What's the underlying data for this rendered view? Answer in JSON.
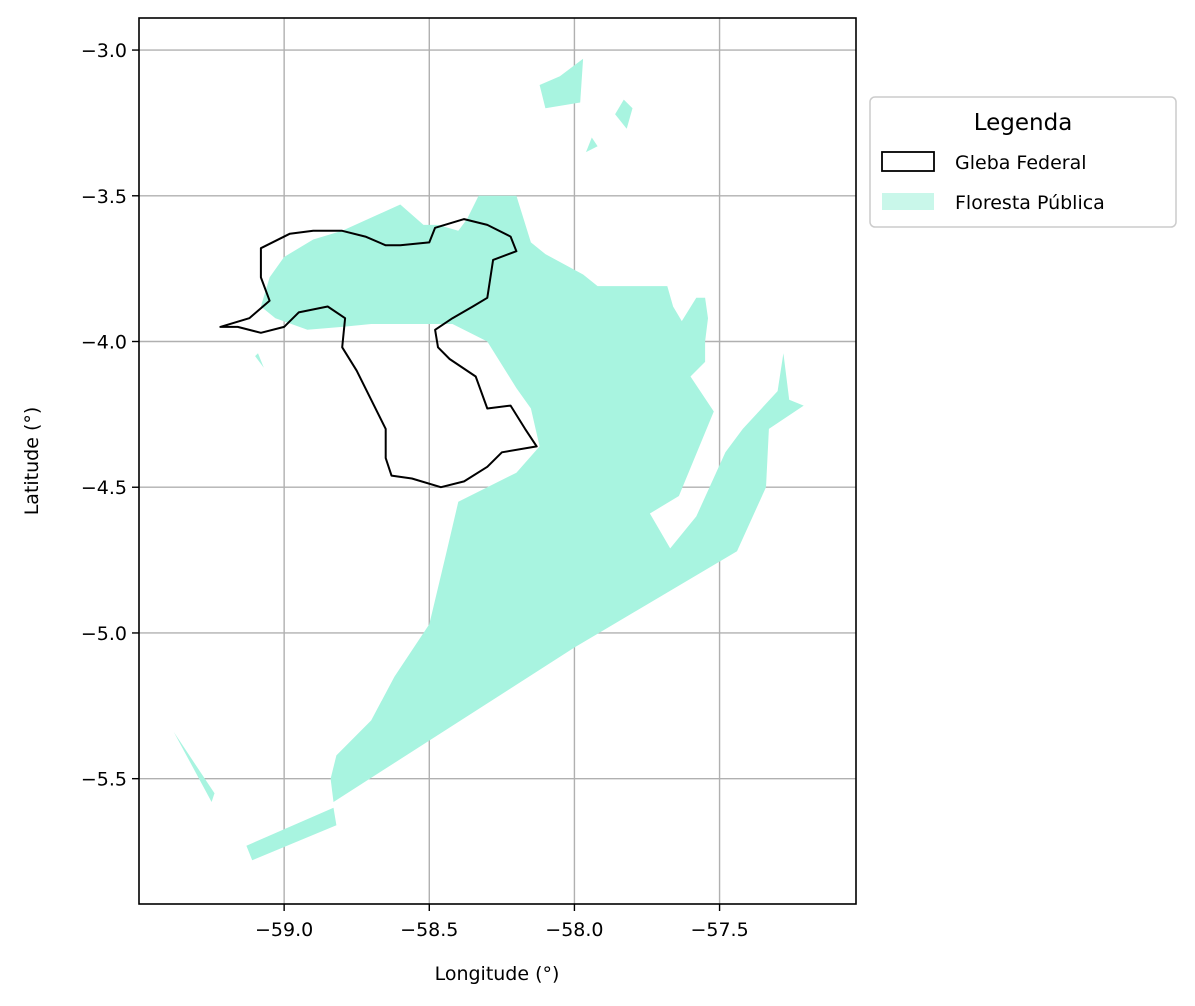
{
  "axes": {
    "xlabel": "Longitude (°)",
    "ylabel": "Latitude (°)",
    "xlim": [
      -59.5,
      -57.03
    ],
    "ylim": [
      -5.93,
      -2.89
    ],
    "xticks": [
      {
        "value": -59.0,
        "label": "−59.0"
      },
      {
        "value": -58.5,
        "label": "−58.5"
      },
      {
        "value": -58.0,
        "label": "−58.0"
      },
      {
        "value": -57.5,
        "label": "−57.5"
      }
    ],
    "yticks": [
      {
        "value": -3.0,
        "label": "−3.0"
      },
      {
        "value": -3.5,
        "label": "−3.5"
      },
      {
        "value": -4.0,
        "label": "−4.0"
      },
      {
        "value": -4.5,
        "label": "−4.5"
      },
      {
        "value": -5.0,
        "label": "−5.0"
      },
      {
        "value": -5.5,
        "label": "−5.5"
      }
    ],
    "grid": true
  },
  "legend": {
    "title": "Legenda",
    "placement": "outside right, top",
    "items": [
      {
        "key": "gleba",
        "label": "Gleba Federal"
      },
      {
        "key": "floresta",
        "label": "Floresta Pública"
      }
    ]
  },
  "colors": {
    "floresta_fill": "#a8f4e0",
    "gleba_stroke": "#000000",
    "grid": "#b0b0b0"
  },
  "layers": {
    "floresta_publica": [
      [
        [
          -58.6,
          -3.53
        ],
        [
          -58.52,
          -3.6
        ],
        [
          -58.47,
          -3.6
        ],
        [
          -58.4,
          -3.62
        ],
        [
          -58.37,
          -3.58
        ],
        [
          -58.33,
          -3.5
        ],
        [
          -58.2,
          -3.5
        ],
        [
          -58.15,
          -3.66
        ],
        [
          -58.1,
          -3.7
        ],
        [
          -57.97,
          -3.77
        ],
        [
          -57.92,
          -3.81
        ],
        [
          -57.82,
          -3.81
        ],
        [
          -57.68,
          -3.81
        ],
        [
          -57.66,
          -3.88
        ],
        [
          -57.63,
          -3.93
        ],
        [
          -57.58,
          -3.85
        ],
        [
          -57.55,
          -3.85
        ],
        [
          -57.54,
          -3.92
        ],
        [
          -57.55,
          -4.0
        ],
        [
          -57.55,
          -4.07
        ],
        [
          -57.6,
          -4.12
        ],
        [
          -57.52,
          -4.24
        ],
        [
          -57.64,
          -4.53
        ],
        [
          -57.74,
          -4.59
        ],
        [
          -57.67,
          -4.71
        ],
        [
          -57.58,
          -4.6
        ],
        [
          -57.48,
          -4.38
        ],
        [
          -57.42,
          -4.3
        ],
        [
          -57.3,
          -4.17
        ],
        [
          -57.28,
          -4.04
        ],
        [
          -57.26,
          -4.2
        ],
        [
          -57.21,
          -4.22
        ],
        [
          -57.33,
          -4.3
        ],
        [
          -57.34,
          -4.5
        ],
        [
          -57.44,
          -4.72
        ],
        [
          -58.0,
          -5.05
        ],
        [
          -58.83,
          -5.58
        ],
        [
          -58.84,
          -5.5
        ],
        [
          -58.82,
          -5.42
        ],
        [
          -58.7,
          -5.3
        ],
        [
          -58.62,
          -5.15
        ],
        [
          -58.5,
          -4.97
        ],
        [
          -58.44,
          -4.72
        ],
        [
          -58.4,
          -4.55
        ],
        [
          -58.3,
          -4.5
        ],
        [
          -58.2,
          -4.45
        ],
        [
          -58.12,
          -4.36
        ],
        [
          -58.15,
          -4.23
        ],
        [
          -58.2,
          -4.16
        ],
        [
          -58.3,
          -4.0
        ],
        [
          -58.42,
          -3.94
        ],
        [
          -58.55,
          -3.94
        ],
        [
          -58.7,
          -3.94
        ],
        [
          -58.8,
          -3.95
        ],
        [
          -58.92,
          -3.96
        ],
        [
          -59.03,
          -3.92
        ],
        [
          -59.08,
          -3.88
        ],
        [
          -59.05,
          -3.78
        ],
        [
          -59.0,
          -3.71
        ],
        [
          -58.9,
          -3.65
        ],
        [
          -58.8,
          -3.62
        ]
      ],
      [
        [
          -58.83,
          -5.6
        ],
        [
          -59.13,
          -5.73
        ],
        [
          -59.11,
          -5.78
        ],
        [
          -58.82,
          -5.66
        ]
      ],
      [
        [
          -59.38,
          -5.34
        ],
        [
          -59.25,
          -5.58
        ],
        [
          -59.24,
          -5.55
        ]
      ],
      [
        [
          -59.1,
          -4.05
        ],
        [
          -59.07,
          -4.09
        ],
        [
          -59.09,
          -4.04
        ]
      ],
      [
        [
          -58.05,
          -3.09
        ],
        [
          -57.97,
          -3.03
        ],
        [
          -57.98,
          -3.18
        ],
        [
          -58.1,
          -3.2
        ],
        [
          -58.12,
          -3.12
        ]
      ],
      [
        [
          -57.83,
          -3.17
        ],
        [
          -57.8,
          -3.2
        ],
        [
          -57.82,
          -3.27
        ],
        [
          -57.86,
          -3.22
        ]
      ],
      [
        [
          -57.94,
          -3.3
        ],
        [
          -57.96,
          -3.35
        ],
        [
          -57.92,
          -3.33
        ]
      ]
    ],
    "gleba_federal": [
      [
        [
          -59.22,
          -3.95
        ],
        [
          -59.12,
          -3.92
        ],
        [
          -59.05,
          -3.86
        ],
        [
          -59.08,
          -3.78
        ],
        [
          -59.08,
          -3.68
        ],
        [
          -58.98,
          -3.63
        ],
        [
          -58.9,
          -3.62
        ],
        [
          -58.8,
          -3.62
        ],
        [
          -58.72,
          -3.64
        ],
        [
          -58.65,
          -3.67
        ],
        [
          -58.6,
          -3.67
        ],
        [
          -58.5,
          -3.66
        ],
        [
          -58.48,
          -3.61
        ],
        [
          -58.38,
          -3.58
        ],
        [
          -58.3,
          -3.6
        ],
        [
          -58.22,
          -3.64
        ],
        [
          -58.2,
          -3.69
        ],
        [
          -58.28,
          -3.72
        ],
        [
          -58.3,
          -3.85
        ],
        [
          -58.35,
          -3.88
        ],
        [
          -58.42,
          -3.92
        ],
        [
          -58.48,
          -3.96
        ],
        [
          -58.47,
          -4.02
        ],
        [
          -58.43,
          -4.06
        ],
        [
          -58.34,
          -4.12
        ],
        [
          -58.3,
          -4.23
        ],
        [
          -58.22,
          -4.22
        ],
        [
          -58.17,
          -4.3
        ],
        [
          -58.13,
          -4.36
        ],
        [
          -58.25,
          -4.38
        ],
        [
          -58.3,
          -4.43
        ],
        [
          -58.38,
          -4.48
        ],
        [
          -58.46,
          -4.5
        ],
        [
          -58.56,
          -4.47
        ],
        [
          -58.63,
          -4.46
        ],
        [
          -58.65,
          -4.4
        ],
        [
          -58.65,
          -4.3
        ],
        [
          -58.7,
          -4.2
        ],
        [
          -58.75,
          -4.1
        ],
        [
          -58.8,
          -4.02
        ],
        [
          -58.79,
          -3.92
        ],
        [
          -58.85,
          -3.88
        ],
        [
          -58.95,
          -3.9
        ],
        [
          -59.0,
          -3.95
        ],
        [
          -59.08,
          -3.97
        ],
        [
          -59.16,
          -3.95
        ]
      ]
    ]
  }
}
